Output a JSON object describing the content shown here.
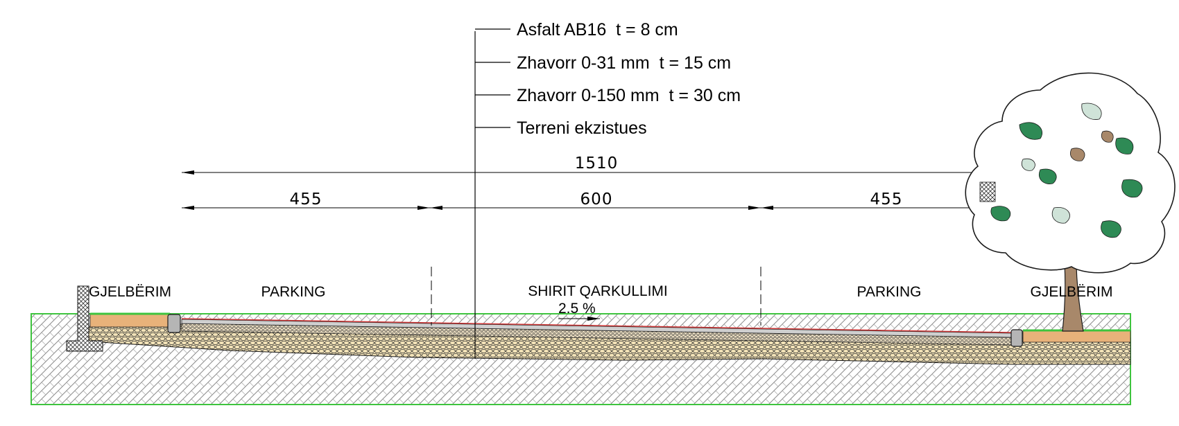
{
  "layers": [
    {
      "label": "Asfalt AB16  t = 8 cm"
    },
    {
      "label": "Zhavorr 0-31 mm  t = 15 cm"
    },
    {
      "label": "Zhavorr 0-150 mm  t = 30 cm"
    },
    {
      "label": "Terreni ekzistues"
    }
  ],
  "dimensions": {
    "total": "1510",
    "left_parking": "455",
    "carriageway": "600",
    "right_parking": "455"
  },
  "zones": {
    "green_left": "GJELBËRIM",
    "parking_left": "PARKING",
    "carriageway": "SHIRIT QARKULLIMI",
    "parking_right": "PARKING",
    "green_right": "GJELBËRIM"
  },
  "slope": "2.5 %",
  "colors": {
    "asphalt_line": "#d23a3a",
    "base_fill": "#f3e3b8",
    "topsoil_fill": "#e8b27a",
    "ground_outline": "#3ec43e",
    "ground_hatch": "#8c8c8c",
    "tree_leaf": "#2e8a55",
    "tree_trunk": "#a8886a"
  }
}
